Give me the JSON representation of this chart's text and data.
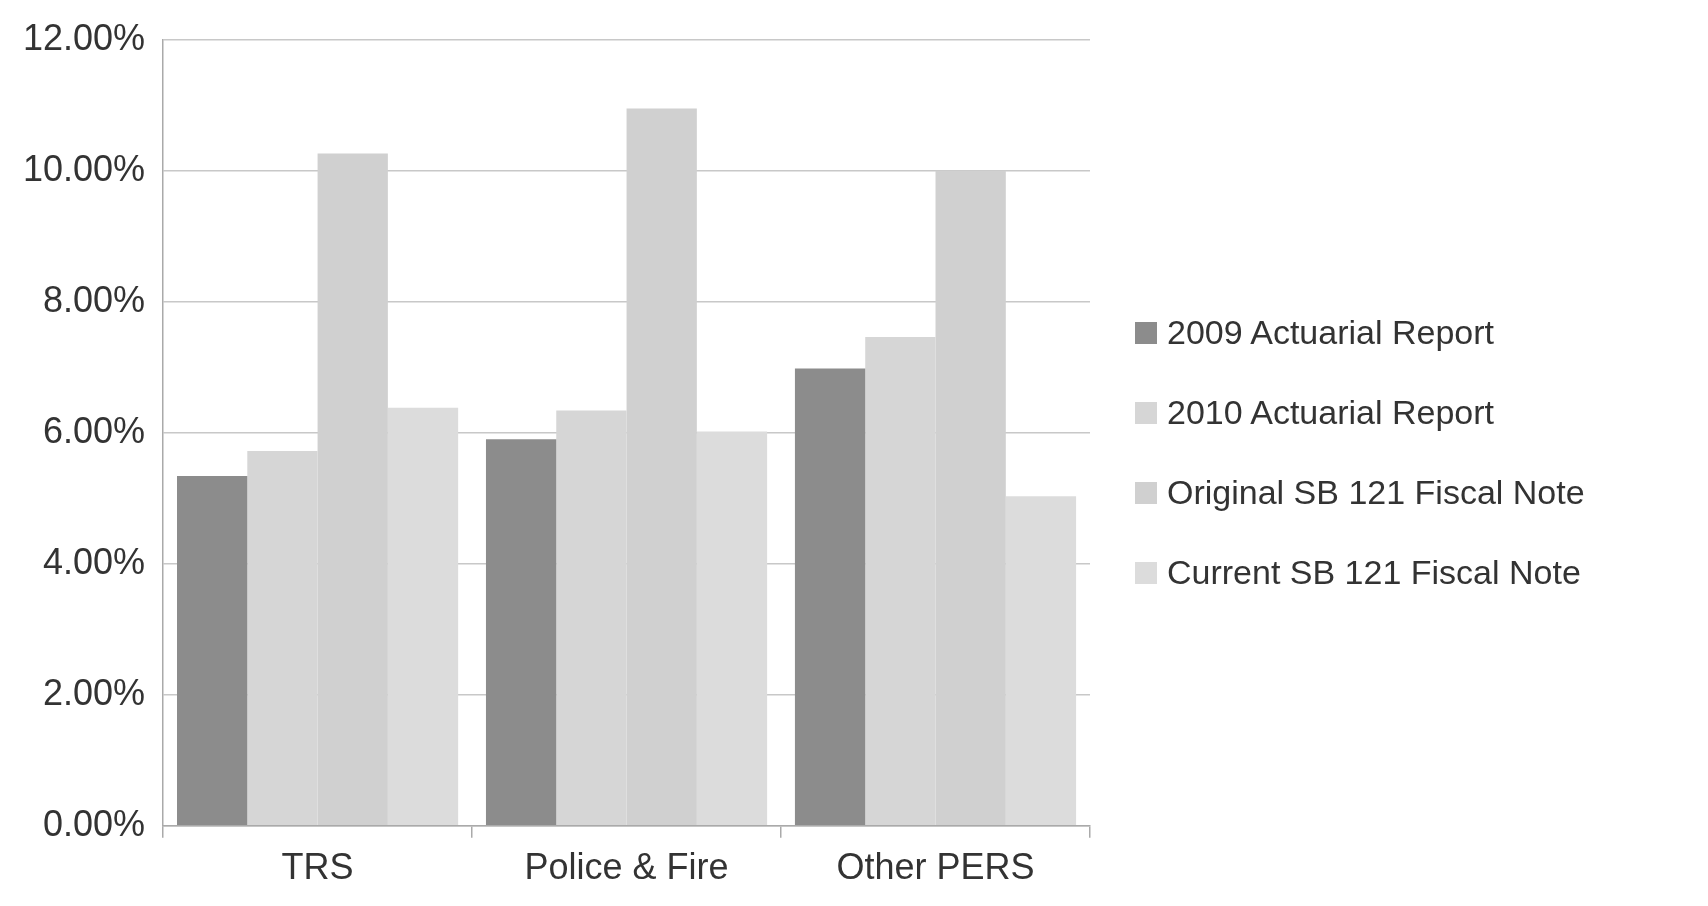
{
  "chart_data": {
    "type": "bar",
    "categories": [
      "TRS",
      "Police & Fire",
      "Other PERS"
    ],
    "series": [
      {
        "name": "2009 Actuarial Report",
        "color": "#8c8c8c",
        "values": [
          5.34,
          5.9,
          6.98
        ]
      },
      {
        "name": "2010 Actuarial Report",
        "color": "#d6d6d6",
        "values": [
          5.72,
          6.34,
          7.46
        ]
      },
      {
        "name": "Original SB 121 Fiscal Note",
        "color": "#d0d0d0",
        "values": [
          10.26,
          10.95,
          10.0
        ]
      },
      {
        "name": "Current SB 121 Fiscal Note",
        "color": "#dcdcdc",
        "values": [
          6.38,
          6.02,
          5.03
        ]
      }
    ],
    "ylim": [
      0,
      12
    ],
    "yticks": [
      {
        "value": 0,
        "label": "0.00%"
      },
      {
        "value": 2,
        "label": "2.00%"
      },
      {
        "value": 4,
        "label": "4.00%"
      },
      {
        "value": 6,
        "label": "6.00%"
      },
      {
        "value": 8,
        "label": "8.00%"
      },
      {
        "value": 10,
        "label": "10.00%"
      },
      {
        "value": 12,
        "label": "12.00%"
      }
    ],
    "grid": "y",
    "legend": "right"
  }
}
